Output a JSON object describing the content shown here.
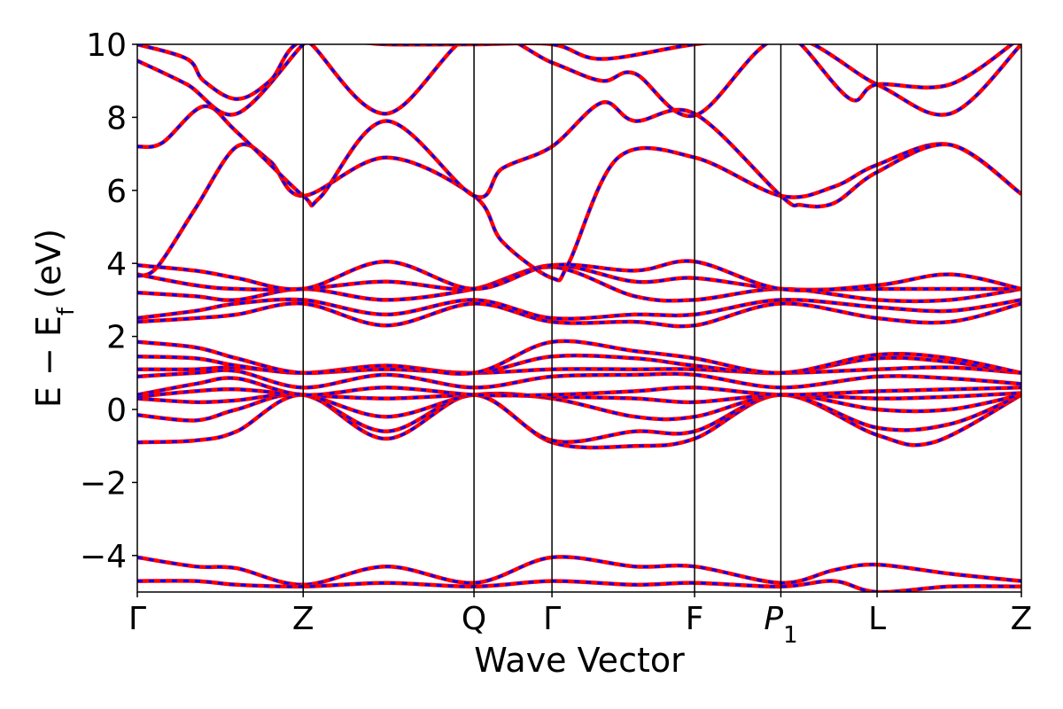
{
  "colors": {
    "primary_band": "#ff0000",
    "overlay_band": "#0000ff",
    "axes": "#000000",
    "background": "#ffffff"
  },
  "chart_data": {
    "type": "line",
    "title": "",
    "xlabel": "Wave Vector",
    "ylabel": "E − E",
    "ylabel_sub": "f",
    "ylabel_unit": "(eV)",
    "ylim": [
      -5,
      10
    ],
    "yticks": [
      -4,
      -2,
      0,
      2,
      4,
      6,
      8,
      10
    ],
    "ytick_labels": [
      "−4",
      "−2",
      "0",
      "2",
      "4",
      "6",
      "8",
      "10"
    ],
    "grid": false,
    "legend": "none",
    "kpoints": [
      {
        "label": "Γ",
        "pos": 0.0
      },
      {
        "label": "Z",
        "pos": 1.0
      },
      {
        "label": "Q",
        "pos": 2.03
      },
      {
        "label": "Γ",
        "pos": 2.5
      },
      {
        "label": "F",
        "pos": 3.36
      },
      {
        "label": "P",
        "sub": "1",
        "italic": true,
        "pos": 3.88
      },
      {
        "label": "L",
        "pos": 4.46
      },
      {
        "label": "Z",
        "pos": 5.33
      }
    ],
    "xlim": [
      0,
      5.33
    ],
    "series_styles": [
      {
        "style": "solid",
        "color": "#ff0000"
      },
      {
        "style": "dashed",
        "color": "#0000ff"
      }
    ],
    "bands": [
      [
        [
          0,
          -0.9
        ],
        [
          0.35,
          -0.85
        ],
        [
          0.6,
          -0.6
        ],
        [
          1.0,
          0.4
        ],
        [
          1.5,
          -0.8
        ],
        [
          2.03,
          0.4
        ],
        [
          2.5,
          -0.9
        ],
        [
          3.0,
          -1.0
        ],
        [
          3.36,
          -0.8
        ],
        [
          3.88,
          0.4
        ],
        [
          4.46,
          -0.7
        ],
        [
          4.8,
          -0.9
        ],
        [
          5.33,
          0.4
        ]
      ],
      [
        [
          0,
          -0.15
        ],
        [
          0.35,
          -0.3
        ],
        [
          0.6,
          0.0
        ],
        [
          1.0,
          0.4
        ],
        [
          1.5,
          -0.6
        ],
        [
          2.03,
          0.4
        ],
        [
          2.5,
          -0.85
        ],
        [
          3.0,
          -0.6
        ],
        [
          3.36,
          -0.6
        ],
        [
          3.88,
          0.4
        ],
        [
          4.46,
          -0.5
        ],
        [
          4.9,
          -0.4
        ],
        [
          5.33,
          0.4
        ]
      ],
      [
        [
          0,
          0.3
        ],
        [
          0.35,
          0.2
        ],
        [
          0.6,
          0.25
        ],
        [
          1.0,
          0.4
        ],
        [
          1.5,
          -0.2
        ],
        [
          2.03,
          0.4
        ],
        [
          2.5,
          0.3
        ],
        [
          3.0,
          -0.2
        ],
        [
          3.36,
          -0.2
        ],
        [
          3.88,
          0.4
        ],
        [
          4.46,
          0.0
        ],
        [
          4.9,
          0.0
        ],
        [
          5.33,
          0.4
        ]
      ],
      [
        [
          0,
          0.35
        ],
        [
          0.35,
          0.5
        ],
        [
          0.6,
          0.55
        ],
        [
          1.0,
          0.4
        ],
        [
          1.5,
          0.3
        ],
        [
          2.03,
          0.4
        ],
        [
          2.5,
          0.35
        ],
        [
          3.0,
          0.3
        ],
        [
          3.36,
          0.2
        ],
        [
          3.88,
          0.4
        ],
        [
          4.46,
          0.3
        ],
        [
          4.9,
          0.35
        ],
        [
          5.33,
          0.45
        ]
      ],
      [
        [
          0,
          0.4
        ],
        [
          0.35,
          0.7
        ],
        [
          0.6,
          0.85
        ],
        [
          1.0,
          0.4
        ],
        [
          1.5,
          0.6
        ],
        [
          2.03,
          0.4
        ],
        [
          2.5,
          0.4
        ],
        [
          3.0,
          0.5
        ],
        [
          3.36,
          0.6
        ],
        [
          3.88,
          0.4
        ],
        [
          4.46,
          0.5
        ],
        [
          4.9,
          0.55
        ],
        [
          5.33,
          0.6
        ]
      ],
      [
        [
          0,
          0.9
        ],
        [
          0.35,
          1.0
        ],
        [
          0.6,
          1.05
        ],
        [
          1.0,
          0.6
        ],
        [
          1.5,
          0.95
        ],
        [
          2.03,
          0.6
        ],
        [
          2.5,
          0.9
        ],
        [
          3.0,
          0.95
        ],
        [
          3.36,
          0.95
        ],
        [
          3.88,
          0.6
        ],
        [
          4.46,
          0.9
        ],
        [
          4.9,
          0.85
        ],
        [
          5.33,
          0.7
        ]
      ],
      [
        [
          0,
          1.1
        ],
        [
          0.35,
          1.1
        ],
        [
          0.6,
          1.15
        ],
        [
          1.0,
          1.0
        ],
        [
          1.5,
          1.1
        ],
        [
          2.03,
          1.0
        ],
        [
          2.5,
          1.1
        ],
        [
          3.0,
          1.1
        ],
        [
          3.36,
          1.1
        ],
        [
          3.88,
          1.0
        ],
        [
          4.46,
          1.1
        ],
        [
          4.9,
          1.15
        ],
        [
          5.33,
          1.0
        ]
      ],
      [
        [
          0,
          1.45
        ],
        [
          0.35,
          1.4
        ],
        [
          0.6,
          1.2
        ],
        [
          1.0,
          1.0
        ],
        [
          1.5,
          1.2
        ],
        [
          2.03,
          1.0
        ],
        [
          2.5,
          1.45
        ],
        [
          3.0,
          1.4
        ],
        [
          3.36,
          1.2
        ],
        [
          3.88,
          1.0
        ],
        [
          4.46,
          1.4
        ],
        [
          4.9,
          1.3
        ],
        [
          5.33,
          1.0
        ]
      ],
      [
        [
          0,
          1.85
        ],
        [
          0.35,
          1.7
        ],
        [
          0.6,
          1.4
        ],
        [
          1.0,
          1.0
        ],
        [
          1.5,
          1.2
        ],
        [
          2.03,
          1.0
        ],
        [
          2.5,
          1.85
        ],
        [
          3.0,
          1.6
        ],
        [
          3.36,
          1.4
        ],
        [
          3.88,
          1.0
        ],
        [
          4.46,
          1.5
        ],
        [
          4.9,
          1.4
        ],
        [
          5.33,
          1.0
        ]
      ],
      [
        [
          0,
          2.4
        ],
        [
          0.35,
          2.5
        ],
        [
          0.6,
          2.6
        ],
        [
          1.0,
          2.9
        ],
        [
          1.5,
          2.3
        ],
        [
          2.03,
          2.9
        ],
        [
          2.5,
          2.4
        ],
        [
          3.0,
          2.4
        ],
        [
          3.36,
          2.3
        ],
        [
          3.88,
          2.9
        ],
        [
          4.46,
          2.5
        ],
        [
          4.9,
          2.4
        ],
        [
          5.33,
          2.9
        ]
      ],
      [
        [
          0,
          2.5
        ],
        [
          0.35,
          2.7
        ],
        [
          0.6,
          2.9
        ],
        [
          1.0,
          3.0
        ],
        [
          1.5,
          2.6
        ],
        [
          2.03,
          3.0
        ],
        [
          2.5,
          2.5
        ],
        [
          3.0,
          2.6
        ],
        [
          3.36,
          2.6
        ],
        [
          3.88,
          3.0
        ],
        [
          4.46,
          2.8
        ],
        [
          4.9,
          2.7
        ],
        [
          5.33,
          3.0
        ]
      ],
      [
        [
          0,
          3.2
        ],
        [
          0.35,
          3.1
        ],
        [
          0.6,
          3.0
        ],
        [
          1.0,
          3.3
        ],
        [
          1.5,
          3.0
        ],
        [
          2.03,
          3.3
        ],
        [
          2.5,
          3.9
        ],
        [
          3.0,
          3.1
        ],
        [
          3.36,
          3.0
        ],
        [
          3.88,
          3.3
        ],
        [
          4.46,
          3.0
        ],
        [
          4.9,
          3.0
        ],
        [
          5.33,
          3.3
        ]
      ],
      [
        [
          0,
          3.7
        ],
        [
          0.35,
          3.4
        ],
        [
          0.6,
          3.3
        ],
        [
          1.0,
          3.3
        ],
        [
          1.5,
          3.5
        ],
        [
          2.03,
          3.3
        ],
        [
          2.5,
          3.95
        ],
        [
          3.0,
          3.5
        ],
        [
          3.36,
          3.6
        ],
        [
          3.88,
          3.3
        ],
        [
          4.46,
          3.3
        ],
        [
          4.9,
          3.3
        ],
        [
          5.33,
          3.3
        ]
      ],
      [
        [
          0,
          3.95
        ],
        [
          0.35,
          3.8
        ],
        [
          0.6,
          3.6
        ],
        [
          1.0,
          3.3
        ],
        [
          1.5,
          4.05
        ],
        [
          2.03,
          3.3
        ],
        [
          2.5,
          3.95
        ],
        [
          3.0,
          3.8
        ],
        [
          3.36,
          4.05
        ],
        [
          3.88,
          3.3
        ],
        [
          4.46,
          3.4
        ],
        [
          4.9,
          3.7
        ],
        [
          5.33,
          3.3
        ]
      ],
      [
        [
          0,
          3.65
        ],
        [
          0.12,
          3.9
        ],
        [
          0.35,
          5.5
        ],
        [
          0.6,
          7.2
        ],
        [
          0.8,
          6.8
        ],
        [
          1.0,
          5.85
        ],
        [
          1.5,
          6.9
        ],
        [
          2.03,
          5.85
        ],
        [
          2.2,
          4.6
        ],
        [
          2.5,
          3.6
        ],
        [
          2.6,
          4.0
        ],
        [
          2.9,
          6.9
        ],
        [
          3.36,
          6.9
        ],
        [
          3.88,
          5.85
        ],
        [
          4.2,
          6.1
        ],
        [
          4.46,
          6.7
        ],
        [
          4.9,
          7.25
        ],
        [
          5.33,
          5.9
        ]
      ],
      [
        [
          0,
          7.2
        ],
        [
          0.15,
          7.3
        ],
        [
          0.4,
          8.3
        ],
        [
          0.6,
          7.6
        ],
        [
          1.0,
          5.85
        ],
        [
          1.1,
          5.8
        ],
        [
          1.5,
          7.9
        ],
        [
          2.03,
          5.85
        ],
        [
          2.2,
          6.6
        ],
        [
          2.5,
          7.2
        ],
        [
          2.8,
          8.4
        ],
        [
          3.0,
          7.9
        ],
        [
          3.36,
          8.1
        ],
        [
          3.88,
          5.85
        ],
        [
          4.0,
          5.6
        ],
        [
          4.2,
          5.65
        ],
        [
          4.46,
          6.5
        ],
        [
          4.9,
          7.25
        ],
        [
          5.33,
          5.9
        ]
      ],
      [
        [
          0,
          9.55
        ],
        [
          0.3,
          8.9
        ],
        [
          0.6,
          8.1
        ],
        [
          1.0,
          10.0
        ],
        [
          1.05,
          10.0
        ],
        [
          1.5,
          8.1
        ],
        [
          2.03,
          10.3
        ],
        [
          2.5,
          9.5
        ],
        [
          2.8,
          9.0
        ],
        [
          3.0,
          9.2
        ],
        [
          3.36,
          8.05
        ],
        [
          3.88,
          10.2
        ],
        [
          4.46,
          8.9
        ],
        [
          4.9,
          8.1
        ],
        [
          5.33,
          10.0
        ]
      ],
      [
        [
          0,
          10.0
        ],
        [
          0.3,
          9.6
        ],
        [
          0.4,
          9.0
        ],
        [
          0.6,
          8.5
        ],
        [
          0.8,
          9.0
        ],
        [
          1.0,
          10.1
        ],
        [
          1.5,
          10.0
        ],
        [
          2.03,
          10.0
        ],
        [
          2.5,
          10.0
        ],
        [
          2.8,
          9.6
        ],
        [
          3.36,
          10.0
        ],
        [
          3.88,
          10.2
        ],
        [
          4.0,
          10.0
        ],
        [
          4.3,
          8.5
        ],
        [
          4.46,
          8.9
        ],
        [
          4.9,
          8.9
        ],
        [
          5.33,
          10.2
        ]
      ],
      [
        [
          0,
          -4.05
        ],
        [
          0.35,
          -4.3
        ],
        [
          0.6,
          -4.35
        ],
        [
          1.0,
          -4.8
        ],
        [
          1.5,
          -4.3
        ],
        [
          2.03,
          -4.75
        ],
        [
          2.5,
          -4.05
        ],
        [
          3.0,
          -4.3
        ],
        [
          3.36,
          -4.3
        ],
        [
          3.88,
          -4.75
        ],
        [
          4.2,
          -4.4
        ],
        [
          4.46,
          -4.25
        ],
        [
          4.9,
          -4.5
        ],
        [
          5.33,
          -4.7
        ]
      ],
      [
        [
          0,
          -4.7
        ],
        [
          0.35,
          -4.7
        ],
        [
          0.6,
          -4.8
        ],
        [
          1.0,
          -4.85
        ],
        [
          1.5,
          -4.75
        ],
        [
          2.03,
          -4.85
        ],
        [
          2.5,
          -4.7
        ],
        [
          3.0,
          -4.8
        ],
        [
          3.36,
          -4.75
        ],
        [
          3.88,
          -4.85
        ],
        [
          4.2,
          -4.7
        ],
        [
          4.46,
          -5.0
        ],
        [
          4.9,
          -4.85
        ],
        [
          5.33,
          -4.85
        ]
      ]
    ]
  }
}
